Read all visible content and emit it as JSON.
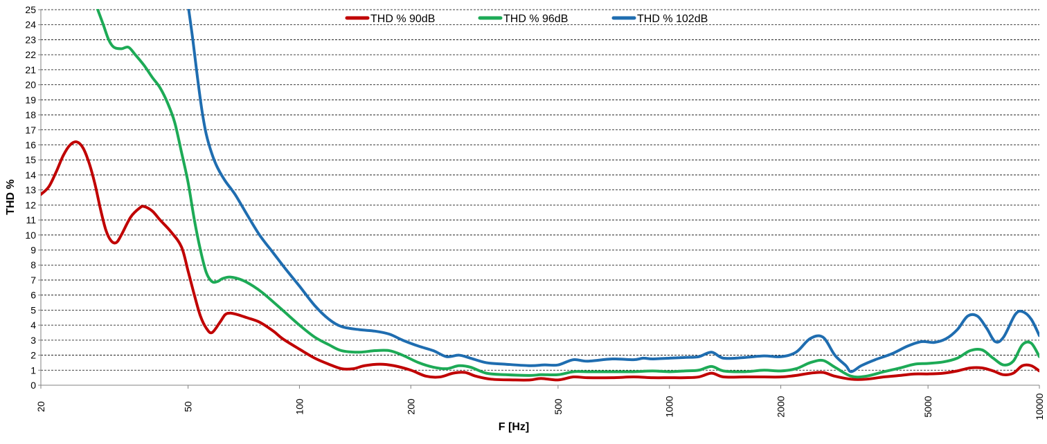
{
  "chart_data": {
    "type": "line",
    "title": "",
    "xlabel": "F [Hz]",
    "ylabel": "THD %",
    "xscale": "log",
    "xlim": [
      20,
      10000
    ],
    "ylim": [
      0,
      25
    ],
    "grid": "horizontal-dashed",
    "legend_position": "top-center",
    "x_ticks": [
      {
        "value": 20,
        "label": "20"
      },
      {
        "value": 50,
        "label": "50"
      },
      {
        "value": 100,
        "label": "100"
      },
      {
        "value": 200,
        "label": "200"
      },
      {
        "value": 500,
        "label": "500"
      },
      {
        "value": 1000,
        "label": "1000"
      },
      {
        "value": 2000,
        "label": "2000"
      },
      {
        "value": 5000,
        "label": "5000"
      },
      {
        "value": 10000,
        "label": "10000"
      }
    ],
    "y_ticks": [
      {
        "value": 0,
        "label": "0"
      },
      {
        "value": 1,
        "label": "1"
      },
      {
        "value": 2,
        "label": "2"
      },
      {
        "value": 3,
        "label": "3"
      },
      {
        "value": 4,
        "label": "4"
      },
      {
        "value": 5,
        "label": "5"
      },
      {
        "value": 6,
        "label": "6"
      },
      {
        "value": 7,
        "label": "7"
      },
      {
        "value": 8,
        "label": "8"
      },
      {
        "value": 9,
        "label": "9"
      },
      {
        "value": 10,
        "label": "10"
      },
      {
        "value": 11,
        "label": "11"
      },
      {
        "value": 12,
        "label": "12"
      },
      {
        "value": 13,
        "label": "13"
      },
      {
        "value": 14,
        "label": "14"
      },
      {
        "value": 15,
        "label": "15"
      },
      {
        "value": 16,
        "label": "16"
      },
      {
        "value": 17,
        "label": "17"
      },
      {
        "value": 18,
        "label": "18"
      },
      {
        "value": 19,
        "label": "19"
      },
      {
        "value": 20,
        "label": "20"
      },
      {
        "value": 21,
        "label": "21"
      },
      {
        "value": 22,
        "label": "22"
      },
      {
        "value": 23,
        "label": "23"
      },
      {
        "value": 24,
        "label": "24"
      },
      {
        "value": 25,
        "label": "25"
      }
    ],
    "series": [
      {
        "name": "THD % 90dB",
        "color": "#c00000",
        "points": [
          [
            20,
            12.7
          ],
          [
            21,
            13.2
          ],
          [
            22,
            14.2
          ],
          [
            23,
            15.3
          ],
          [
            24,
            16.0
          ],
          [
            25,
            16.2
          ],
          [
            26,
            15.8
          ],
          [
            27,
            14.8
          ],
          [
            28,
            13.4
          ],
          [
            29,
            11.7
          ],
          [
            30,
            10.3
          ],
          [
            31,
            9.6
          ],
          [
            32,
            9.5
          ],
          [
            33,
            10.0
          ],
          [
            35,
            11.2
          ],
          [
            37,
            11.8
          ],
          [
            38,
            11.9
          ],
          [
            40,
            11.6
          ],
          [
            42,
            11.0
          ],
          [
            45,
            10.2
          ],
          [
            48,
            9.2
          ],
          [
            50,
            7.6
          ],
          [
            52,
            6.0
          ],
          [
            54,
            4.6
          ],
          [
            56,
            3.8
          ],
          [
            58,
            3.5
          ],
          [
            61,
            4.2
          ],
          [
            63,
            4.7
          ],
          [
            65,
            4.8
          ],
          [
            68,
            4.7
          ],
          [
            72,
            4.5
          ],
          [
            78,
            4.2
          ],
          [
            85,
            3.6
          ],
          [
            90,
            3.1
          ],
          [
            100,
            2.4
          ],
          [
            110,
            1.8
          ],
          [
            120,
            1.4
          ],
          [
            130,
            1.1
          ],
          [
            140,
            1.1
          ],
          [
            150,
            1.3
          ],
          [
            165,
            1.4
          ],
          [
            180,
            1.3
          ],
          [
            200,
            1.0
          ],
          [
            220,
            0.6
          ],
          [
            240,
            0.55
          ],
          [
            260,
            0.8
          ],
          [
            280,
            0.85
          ],
          [
            300,
            0.6
          ],
          [
            330,
            0.4
          ],
          [
            380,
            0.35
          ],
          [
            420,
            0.35
          ],
          [
            450,
            0.45
          ],
          [
            500,
            0.35
          ],
          [
            550,
            0.55
          ],
          [
            600,
            0.5
          ],
          [
            700,
            0.5
          ],
          [
            800,
            0.55
          ],
          [
            900,
            0.5
          ],
          [
            1000,
            0.5
          ],
          [
            1100,
            0.5
          ],
          [
            1200,
            0.55
          ],
          [
            1300,
            0.8
          ],
          [
            1400,
            0.55
          ],
          [
            1600,
            0.55
          ],
          [
            1800,
            0.55
          ],
          [
            2000,
            0.55
          ],
          [
            2200,
            0.65
          ],
          [
            2400,
            0.8
          ],
          [
            2600,
            0.85
          ],
          [
            2800,
            0.6
          ],
          [
            3100,
            0.4
          ],
          [
            3400,
            0.4
          ],
          [
            3800,
            0.55
          ],
          [
            4200,
            0.65
          ],
          [
            4600,
            0.75
          ],
          [
            5000,
            0.75
          ],
          [
            5500,
            0.8
          ],
          [
            6000,
            0.95
          ],
          [
            6500,
            1.15
          ],
          [
            7000,
            1.15
          ],
          [
            7500,
            0.95
          ],
          [
            8000,
            0.7
          ],
          [
            8500,
            0.8
          ],
          [
            9000,
            1.3
          ],
          [
            9500,
            1.3
          ],
          [
            10000,
            0.95
          ]
        ]
      },
      {
        "name": "THD % 96dB",
        "color": "#1daa56",
        "points": [
          [
            28.5,
            25.0
          ],
          [
            29.5,
            24.0
          ],
          [
            30.5,
            23.0
          ],
          [
            31.5,
            22.5
          ],
          [
            33,
            22.4
          ],
          [
            34.5,
            22.5
          ],
          [
            36,
            22.0
          ],
          [
            38,
            21.3
          ],
          [
            40,
            20.5
          ],
          [
            42,
            19.8
          ],
          [
            44,
            18.8
          ],
          [
            46,
            17.5
          ],
          [
            48,
            15.5
          ],
          [
            50,
            13.5
          ],
          [
            52,
            11.0
          ],
          [
            54,
            9.0
          ],
          [
            56,
            7.5
          ],
          [
            58,
            6.9
          ],
          [
            60,
            6.9
          ],
          [
            62,
            7.1
          ],
          [
            65,
            7.2
          ],
          [
            70,
            7.0
          ],
          [
            75,
            6.6
          ],
          [
            80,
            6.1
          ],
          [
            90,
            5.0
          ],
          [
            100,
            4.0
          ],
          [
            110,
            3.2
          ],
          [
            120,
            2.7
          ],
          [
            130,
            2.3
          ],
          [
            145,
            2.2
          ],
          [
            160,
            2.3
          ],
          [
            175,
            2.3
          ],
          [
            190,
            2.0
          ],
          [
            210,
            1.5
          ],
          [
            230,
            1.2
          ],
          [
            250,
            1.1
          ],
          [
            270,
            1.3
          ],
          [
            290,
            1.2
          ],
          [
            320,
            0.8
          ],
          [
            360,
            0.7
          ],
          [
            420,
            0.65
          ],
          [
            450,
            0.7
          ],
          [
            500,
            0.7
          ],
          [
            550,
            0.9
          ],
          [
            600,
            0.9
          ],
          [
            700,
            0.9
          ],
          [
            800,
            0.9
          ],
          [
            900,
            0.95
          ],
          [
            1000,
            0.9
          ],
          [
            1100,
            0.95
          ],
          [
            1200,
            1.0
          ],
          [
            1300,
            1.25
          ],
          [
            1400,
            0.95
          ],
          [
            1600,
            0.9
          ],
          [
            1800,
            1.0
          ],
          [
            2000,
            0.95
          ],
          [
            2200,
            1.1
          ],
          [
            2400,
            1.5
          ],
          [
            2600,
            1.65
          ],
          [
            2800,
            1.2
          ],
          [
            3100,
            0.6
          ],
          [
            3400,
            0.6
          ],
          [
            3800,
            0.9
          ],
          [
            4200,
            1.15
          ],
          [
            4600,
            1.4
          ],
          [
            5000,
            1.45
          ],
          [
            5500,
            1.55
          ],
          [
            6000,
            1.8
          ],
          [
            6500,
            2.3
          ],
          [
            7000,
            2.35
          ],
          [
            7500,
            1.8
          ],
          [
            8000,
            1.35
          ],
          [
            8500,
            1.6
          ],
          [
            9000,
            2.7
          ],
          [
            9500,
            2.8
          ],
          [
            10000,
            1.9
          ]
        ]
      },
      {
        "name": "THD % 102dB",
        "color": "#1f6db0",
        "points": [
          [
            50.2,
            25.0
          ],
          [
            51.5,
            23.0
          ],
          [
            53,
            20.5
          ],
          [
            54.5,
            18.3
          ],
          [
            56,
            16.7
          ],
          [
            58,
            15.4
          ],
          [
            60,
            14.5
          ],
          [
            63,
            13.6
          ],
          [
            67,
            12.7
          ],
          [
            72,
            11.4
          ],
          [
            78,
            10.0
          ],
          [
            85,
            8.8
          ],
          [
            92,
            7.7
          ],
          [
            100,
            6.6
          ],
          [
            110,
            5.3
          ],
          [
            120,
            4.4
          ],
          [
            130,
            3.9
          ],
          [
            145,
            3.7
          ],
          [
            160,
            3.6
          ],
          [
            175,
            3.4
          ],
          [
            190,
            3.0
          ],
          [
            210,
            2.6
          ],
          [
            230,
            2.3
          ],
          [
            250,
            1.9
          ],
          [
            270,
            2.0
          ],
          [
            290,
            1.8
          ],
          [
            320,
            1.5
          ],
          [
            360,
            1.4
          ],
          [
            420,
            1.3
          ],
          [
            460,
            1.35
          ],
          [
            500,
            1.35
          ],
          [
            550,
            1.7
          ],
          [
            600,
            1.6
          ],
          [
            700,
            1.75
          ],
          [
            800,
            1.7
          ],
          [
            850,
            1.8
          ],
          [
            900,
            1.75
          ],
          [
            1000,
            1.8
          ],
          [
            1100,
            1.85
          ],
          [
            1200,
            1.9
          ],
          [
            1300,
            2.2
          ],
          [
            1400,
            1.8
          ],
          [
            1600,
            1.85
          ],
          [
            1800,
            1.95
          ],
          [
            2000,
            1.9
          ],
          [
            2200,
            2.2
          ],
          [
            2400,
            3.1
          ],
          [
            2600,
            3.2
          ],
          [
            2800,
            2.0
          ],
          [
            3000,
            1.3
          ],
          [
            3100,
            0.9
          ],
          [
            3300,
            1.3
          ],
          [
            3600,
            1.7
          ],
          [
            4000,
            2.1
          ],
          [
            4400,
            2.6
          ],
          [
            4800,
            2.9
          ],
          [
            5200,
            2.85
          ],
          [
            5600,
            3.1
          ],
          [
            6000,
            3.7
          ],
          [
            6400,
            4.6
          ],
          [
            6800,
            4.6
          ],
          [
            7200,
            3.8
          ],
          [
            7600,
            2.9
          ],
          [
            8000,
            3.2
          ],
          [
            8600,
            4.7
          ],
          [
            9000,
            4.9
          ],
          [
            9500,
            4.4
          ],
          [
            10000,
            3.3
          ]
        ]
      }
    ]
  }
}
